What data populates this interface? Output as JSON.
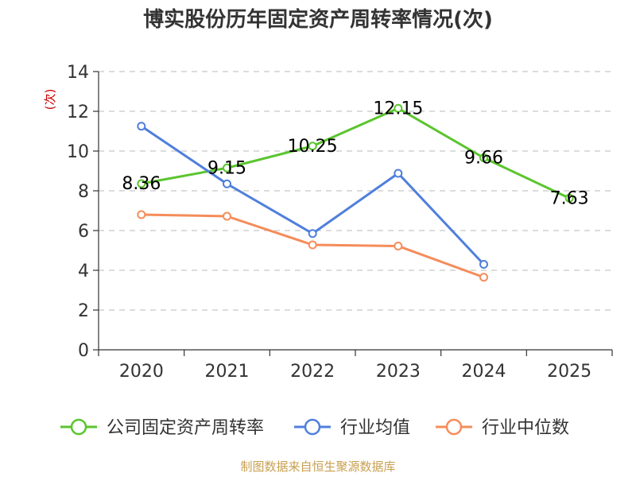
{
  "chart_data": {
    "type": "line",
    "title": "博实股份历年固定资产周转率情况(次)",
    "ylabel": "(次)",
    "xlabel": "",
    "categories": [
      "2020",
      "2021",
      "2022",
      "2023",
      "2024",
      "2025"
    ],
    "ylim": [
      0,
      14
    ],
    "yticks": [
      0,
      2,
      4,
      6,
      8,
      10,
      12,
      14
    ],
    "grid": true,
    "legend_position": "bottom",
    "series": [
      {
        "name": "公司固定资产周转率",
        "color": "#5ac52d",
        "values": [
          8.36,
          9.15,
          10.25,
          12.15,
          9.66,
          7.63
        ],
        "labels": [
          "8.36",
          "9.15",
          "10.25",
          "12.15",
          "9.66",
          "7.63"
        ],
        "show_labels": true
      },
      {
        "name": "行业均值",
        "color": "#4f7fdc",
        "values": [
          11.25,
          8.35,
          5.85,
          8.88,
          4.3,
          null
        ],
        "show_labels": false
      },
      {
        "name": "行业中位数",
        "color": "#f58c5a",
        "values": [
          6.8,
          6.72,
          5.28,
          5.22,
          3.65,
          null
        ],
        "show_labels": false
      }
    ],
    "source": "制图数据来自恒生聚源数据库"
  }
}
